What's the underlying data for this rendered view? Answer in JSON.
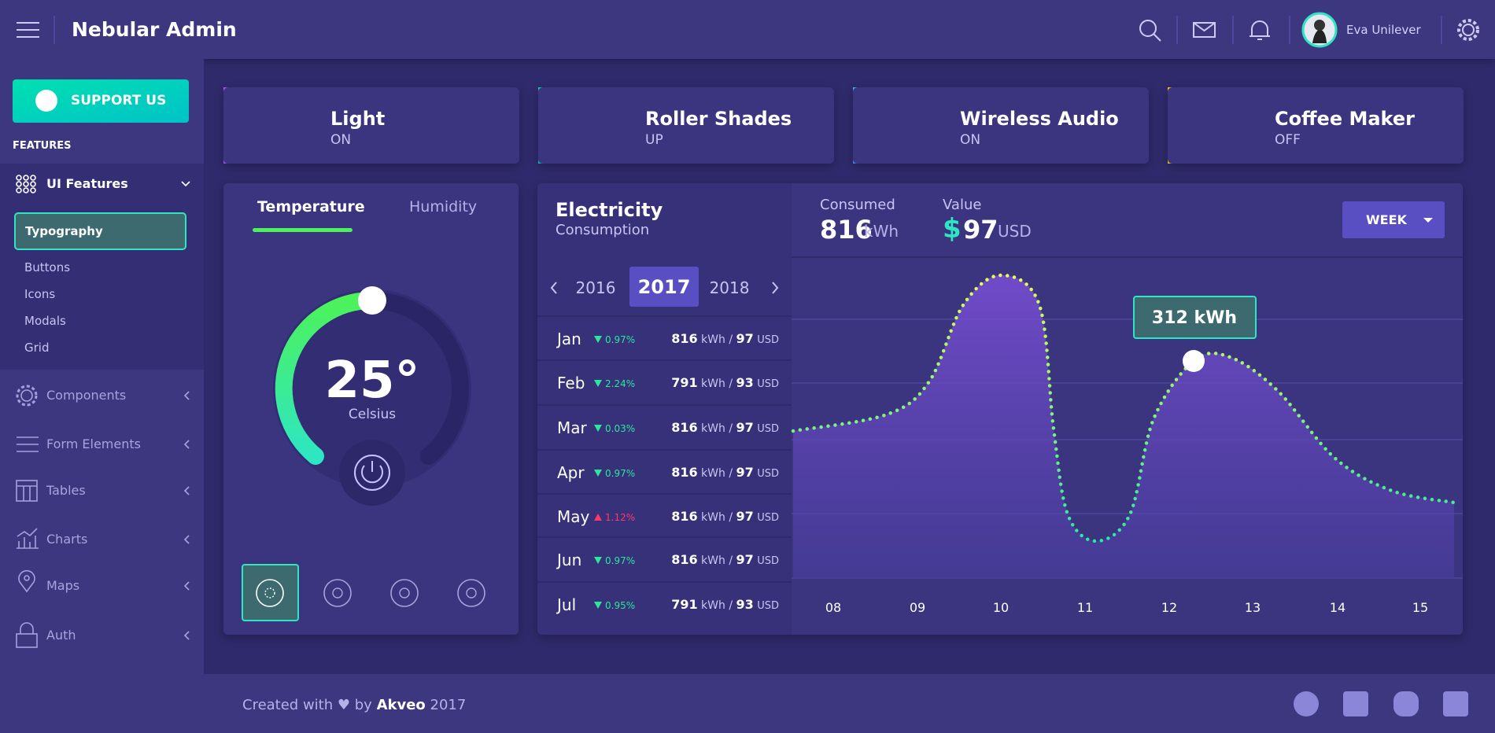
{
  "header": {
    "title": "Nebular Admin",
    "user": "Eva Unilever"
  },
  "sidebar": {
    "button": "SUPPORT US",
    "section": "FEATURES",
    "group": "UI Features",
    "children": [
      "Typography",
      "Buttons",
      "Icons",
      "Modals",
      "Grid"
    ],
    "menu": [
      "Components",
      "Form Elements",
      "Tables",
      "Charts",
      "Maps",
      "Auth"
    ]
  },
  "devices": [
    {
      "name": "Light",
      "status": "ON"
    },
    {
      "name": "Roller Shades",
      "status": "UP"
    },
    {
      "name": "Wireless Audio",
      "status": "ON"
    },
    {
      "name": "Coffee Maker",
      "status": "OFF"
    }
  ],
  "temperature": {
    "tabs": [
      "Temperature",
      "Humidity"
    ],
    "value": "25°",
    "unit": "Celsius"
  },
  "electricity": {
    "title": "Electricity",
    "subtitle": "Consumption",
    "years": [
      "2016",
      "2017",
      "2018"
    ],
    "energy_unit": "kWh",
    "separator": "/",
    "currency_unit": "USD",
    "rows": [
      {
        "month": "Jan",
        "change": "0.97%",
        "trend": "down",
        "kwh": "816",
        "usd": "97"
      },
      {
        "month": "Feb",
        "change": "2.24%",
        "trend": "down",
        "kwh": "791",
        "usd": "93"
      },
      {
        "month": "Mar",
        "change": "0.03%",
        "trend": "down",
        "kwh": "816",
        "usd": "97"
      },
      {
        "month": "Apr",
        "change": "0.97%",
        "trend": "down",
        "kwh": "816",
        "usd": "97"
      },
      {
        "month": "May",
        "change": "1.12%",
        "trend": "up",
        "kwh": "816",
        "usd": "97"
      },
      {
        "month": "Jun",
        "change": "0.97%",
        "trend": "down",
        "kwh": "816",
        "usd": "97"
      },
      {
        "month": "Jul",
        "change": "0.95%",
        "trend": "down",
        "kwh": "791",
        "usd": "93"
      }
    ],
    "consumed": {
      "label": "Consumed",
      "value": "816",
      "unit": "kWh"
    },
    "cost": {
      "label": "Value",
      "symbol": "$",
      "value": "97",
      "unit": "USD"
    },
    "period": "WEEK",
    "tooltip": "312 kWh",
    "hours": [
      "08",
      "09",
      "10",
      "11",
      "12",
      "13",
      "14",
      "15"
    ]
  },
  "footer": {
    "text": "Created with",
    "by": "by",
    "company": "Akveo",
    "year": "2017"
  }
}
